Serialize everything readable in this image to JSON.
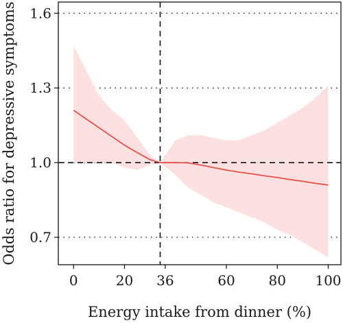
{
  "chart_data": {
    "type": "line",
    "title": "",
    "xlabel": "Energy intake from dinner (%)",
    "ylabel": "Odds ratio for depressive symptoms",
    "xlim": [
      -6,
      105
    ],
    "ylim": [
      0.59,
      1.645
    ],
    "xticks": [
      0,
      20,
      36,
      60,
      80,
      100
    ],
    "yticks": [
      0.7,
      1.0,
      1.3,
      1.6
    ],
    "ytick_labels": [
      "0.7",
      "1.0",
      "1.3",
      "1.6"
    ],
    "grid": "dotted horizontal at y ticks",
    "reference_lines": {
      "x": 34,
      "y": 1.0
    },
    "colors": {
      "line": "#e8504b",
      "band": "#fde1e1",
      "reference": "#111111"
    },
    "series": [
      {
        "x": [
          0,
          5,
          10,
          15,
          20,
          25,
          30,
          34,
          40,
          45,
          50,
          55,
          60,
          65,
          70,
          75,
          80,
          85,
          90,
          95,
          100
        ],
        "y": [
          1.21,
          1.175,
          1.14,
          1.105,
          1.07,
          1.04,
          1.012,
          1.0,
          1.0,
          0.999,
          0.99,
          0.98,
          0.97,
          0.962,
          0.955,
          0.947,
          0.94,
          0.932,
          0.925,
          0.917,
          0.91
        ],
        "upper": [
          1.47,
          1.37,
          1.27,
          1.21,
          1.17,
          1.1,
          1.03,
          1.0,
          1.09,
          1.11,
          1.11,
          1.1,
          1.09,
          1.09,
          1.11,
          1.13,
          1.16,
          1.19,
          1.22,
          1.26,
          1.31
        ],
        "lower": [
          1.0,
          1.0,
          1.0,
          1.0,
          0.98,
          0.97,
          0.99,
          1.0,
          0.95,
          0.9,
          0.87,
          0.84,
          0.82,
          0.8,
          0.78,
          0.76,
          0.73,
          0.71,
          0.68,
          0.65,
          0.62
        ]
      }
    ]
  }
}
